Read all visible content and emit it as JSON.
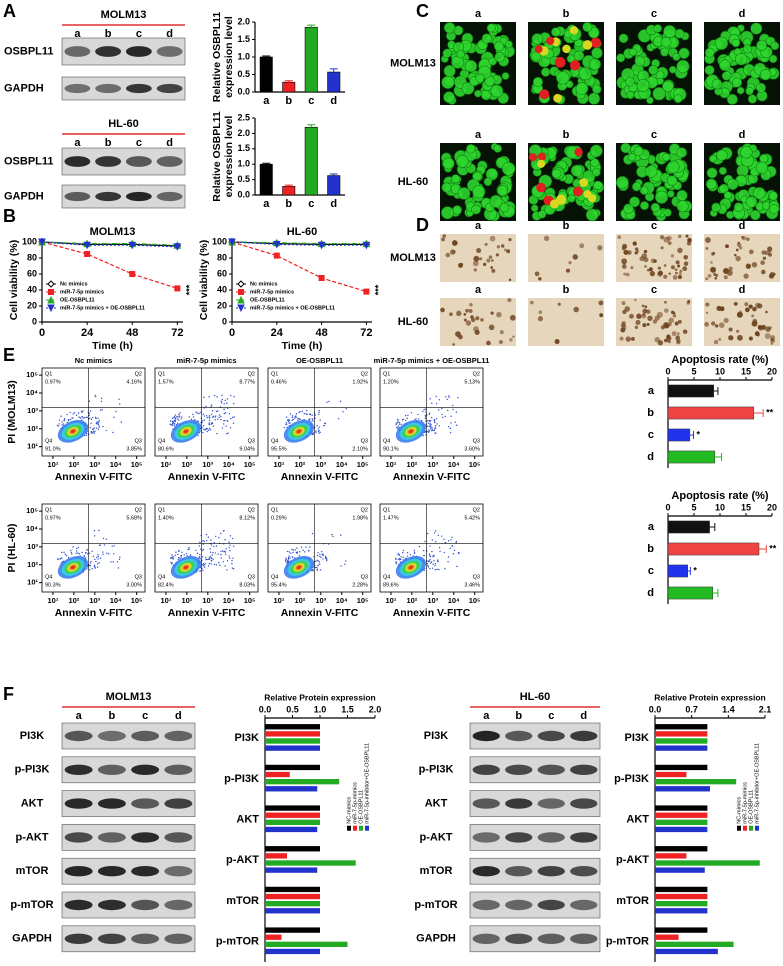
{
  "panels": {
    "labels": [
      "A",
      "B",
      "C",
      "D",
      "E",
      "F"
    ]
  },
  "blots": {
    "A": [
      {
        "cell": "MOLM13",
        "lanes": [
          "a",
          "b",
          "c",
          "d"
        ],
        "rows": [
          "OSBPL11",
          "GAPDH"
        ]
      },
      {
        "cell": "HL-60",
        "lanes": [
          "a",
          "b",
          "c",
          "d"
        ],
        "rows": [
          "OSBPL11",
          "GAPDH"
        ]
      }
    ],
    "F": [
      {
        "cell": "MOLM13",
        "lanes": [
          "a",
          "b",
          "c",
          "d"
        ],
        "rows": [
          "PI3K",
          "p-PI3K",
          "AKT",
          "p-AKT",
          "mTOR",
          "p-mTOR",
          "GAPDH"
        ]
      },
      {
        "cell": "HL-60",
        "lanes": [
          "a",
          "b",
          "c",
          "d"
        ],
        "rows": [
          "PI3K",
          "p-PI3K",
          "AKT",
          "p-AKT",
          "mTOR",
          "p-mTOR",
          "GAPDH"
        ]
      }
    ]
  },
  "images": {
    "C": {
      "columns": [
        "a",
        "b",
        "c",
        "d"
      ],
      "rows": [
        "MOLM13",
        "HL-60"
      ]
    },
    "D": {
      "columns": [
        "a",
        "b",
        "c",
        "d"
      ],
      "rows": [
        "MOLM13",
        "HL-60"
      ]
    }
  },
  "flow": {
    "columns": [
      "Nc mimics",
      "miR-7-5p mimics",
      "OE-OSBPL11",
      "miR-7-5p mimics + OE-OSBPL11"
    ],
    "x_label": "Annexin V-FITC",
    "quadrant_names": [
      "Q1",
      "Q2",
      "Q3",
      "Q4"
    ],
    "log_scale": true,
    "lim": [
      3,
      250000
    ],
    "ticks": [
      {
        "value": 10,
        "label": "10¹"
      },
      {
        "value": 100,
        "label": "10²"
      },
      {
        "value": 1000,
        "label": "10³"
      },
      {
        "value": 10000,
        "label": "10⁴"
      },
      {
        "value": 100000,
        "label": "10⁵"
      }
    ],
    "rows": [
      {
        "y_label": "PI (MOLM13)",
        "plots": [
          {
            "quadrants": [
              "0.97%",
              "4.16%",
              "3.85%",
              "91.0%"
            ]
          },
          {
            "quadrants": [
              "1.57%",
              "8.77%",
              "9.04%",
              "80.6%"
            ]
          },
          {
            "quadrants": [
              "0.46%",
              "1.92%",
              "2.10%",
              "95.5%"
            ]
          },
          {
            "quadrants": [
              "1.20%",
              "5.13%",
              "3.60%",
              "90.1%"
            ]
          }
        ]
      },
      {
        "y_label": "PI (HL-60)",
        "plots": [
          {
            "quadrants": [
              "0.97%",
              "5.68%",
              "3.00%",
              "90.3%"
            ]
          },
          {
            "quadrants": [
              "1.40%",
              "8.12%",
              "8.03%",
              "82.4%"
            ]
          },
          {
            "quadrants": [
              "0.29%",
              "1.98%",
              "2.28%",
              "95.4%"
            ]
          },
          {
            "quadrants": [
              "1.47%",
              "5.42%",
              "3.46%",
              "89.6%"
            ]
          }
        ]
      }
    ]
  },
  "chart_data": [
    {
      "type": "bar",
      "y_label": [
        "Relative OSBPL11",
        "expression level"
      ],
      "categories": [
        "a",
        "b",
        "c",
        "d"
      ],
      "values": [
        1.0,
        0.28,
        1.85,
        0.57
      ],
      "errors": [
        0.03,
        0.04,
        0.06,
        0.09
      ],
      "colors": [
        "#000000",
        "#ee2222",
        "#22aa22",
        "#2233cc"
      ],
      "ylim": [
        0,
        2.0
      ],
      "yticks": [
        {
          "value": 0,
          "label": "0.0"
        },
        {
          "value": 0.5,
          "label": "0.5"
        },
        {
          "value": 1,
          "label": "1.0"
        },
        {
          "value": 1.5,
          "label": "1.5"
        },
        {
          "value": 2,
          "label": "2.0"
        }
      ]
    },
    {
      "type": "bar",
      "y_label": [
        "Relative OSBPL11",
        "expression level"
      ],
      "categories": [
        "a",
        "b",
        "c",
        "d"
      ],
      "values": [
        1.0,
        0.28,
        2.2,
        0.63
      ],
      "errors": [
        0.03,
        0.04,
        0.08,
        0.05
      ],
      "colors": [
        "#000000",
        "#ee2222",
        "#22aa22",
        "#2233cc"
      ],
      "ylim": [
        0,
        2.5
      ],
      "yticks": [
        {
          "value": 0,
          "label": "0.0"
        },
        {
          "value": 0.5,
          "label": "0.5"
        },
        {
          "value": 1,
          "label": "1.0"
        },
        {
          "value": 1.5,
          "label": "1.5"
        },
        {
          "value": 2,
          "label": "2.0"
        },
        {
          "value": 2.5,
          "label": "2.5"
        }
      ]
    },
    {
      "type": "line",
      "title": "MOLM13",
      "title_color": "#f0b800",
      "x_label": "Time (h)",
      "y_label": "Cell viability (%)",
      "x": [
        0,
        24,
        48,
        72
      ],
      "xlim": [
        0,
        75
      ],
      "xticks": [
        0,
        24,
        48,
        72
      ],
      "ylim": [
        0,
        105
      ],
      "yticks": [
        0,
        20,
        40,
        60,
        80,
        100
      ],
      "legend": "lower left",
      "series": [
        {
          "name": "Nc mimics",
          "color": "#000000",
          "marker": "diamond",
          "dash": "none",
          "values": [
            100,
            97,
            97,
            95
          ]
        },
        {
          "name": "miR-7-5p mimics",
          "color": "#ee2222",
          "marker": "square",
          "dash": "4,2",
          "values": [
            100,
            85,
            60,
            42
          ]
        },
        {
          "name": "OE-OSBPL11",
          "color": "#22aa22",
          "marker": "triangle",
          "dash": "5,2,1,2",
          "values": [
            100,
            98,
            98,
            96
          ]
        },
        {
          "name": "miR-7-5p mimics + OE-OSBPL11",
          "color": "#2233cc",
          "marker": "triangle-down",
          "dash": "2,2",
          "values": [
            100,
            96,
            96,
            94
          ]
        }
      ],
      "annotations": [
        {
          "text": "***"
        }
      ]
    },
    {
      "type": "line",
      "title": "HL-60",
      "title_color": "#f0b800",
      "x_label": "Time (h)",
      "y_label": "Cell viability (%)",
      "x": [
        0,
        24,
        48,
        72
      ],
      "xlim": [
        0,
        75
      ],
      "xticks": [
        0,
        24,
        48,
        72
      ],
      "ylim": [
        0,
        105
      ],
      "yticks": [
        0,
        20,
        40,
        60,
        80,
        100
      ],
      "legend": "lower left",
      "series": [
        {
          "name": "Nc mimics",
          "color": "#000000",
          "marker": "diamond",
          "dash": "none",
          "values": [
            100,
            98,
            97,
            97
          ]
        },
        {
          "name": "miR-7-5p mimics",
          "color": "#ee2222",
          "marker": "square",
          "dash": "4,2",
          "values": [
            100,
            83,
            55,
            38
          ]
        },
        {
          "name": "OE-OSBPL11",
          "color": "#22aa22",
          "marker": "triangle",
          "dash": "5,2,1,2",
          "values": [
            100,
            99,
            98,
            98
          ]
        },
        {
          "name": "miR-7-5p mimics + OE-OSBPL11",
          "color": "#2233cc",
          "marker": "triangle-down",
          "dash": "2,2",
          "values": [
            100,
            97,
            96,
            96
          ]
        }
      ],
      "annotations": [
        {
          "text": "***"
        }
      ]
    },
    {
      "type": "bar",
      "horizontal": true,
      "title": "Apoptosis rate (%)",
      "categories": [
        "a",
        "b",
        "c",
        "d"
      ],
      "values": [
        8.8,
        16.5,
        4.2,
        9.0
      ],
      "errors": [
        0.8,
        1.8,
        0.7,
        1.3
      ],
      "colors": [
        "#111111",
        "#ee4444",
        "#2233ee",
        "#22bb22"
      ],
      "xlim": [
        0,
        20
      ],
      "xticks": [
        0,
        5,
        10,
        15,
        20
      ],
      "annotations": [
        {
          "text": "**",
          "category": "b"
        },
        {
          "text": "*",
          "category": "c"
        }
      ]
    },
    {
      "type": "bar",
      "horizontal": true,
      "title": "Apoptosis rate (%)",
      "categories": [
        "a",
        "b",
        "c",
        "d"
      ],
      "values": [
        8.0,
        17.5,
        3.8,
        8.6
      ],
      "errors": [
        1.0,
        1.4,
        0.5,
        1.0
      ],
      "colors": [
        "#111111",
        "#ee4444",
        "#2233ee",
        "#22bb22"
      ],
      "xlim": [
        0,
        20
      ],
      "xticks": [
        0,
        5,
        10,
        15,
        20
      ],
      "annotations": [
        {
          "text": "**",
          "category": "b"
        },
        {
          "text": "*",
          "category": "c"
        }
      ]
    },
    {
      "type": "bar",
      "horizontal": true,
      "title": "Relative  Protein expression",
      "categories": [
        "PI3K",
        "p-PI3K",
        "AKT",
        "p-AKT",
        "mTOR",
        "p-mTOR"
      ],
      "xlim": [
        0,
        2.0
      ],
      "xticks": [
        {
          "value": 0,
          "label": "0.0"
        },
        {
          "value": 0.5,
          "label": "0.5"
        },
        {
          "value": 1,
          "label": "1.0"
        },
        {
          "value": 1.5,
          "label": "1.5"
        },
        {
          "value": 2,
          "label": "2.0"
        }
      ],
      "legend": "right",
      "series": [
        {
          "name": "NC-mimics",
          "color": "#000000",
          "values": [
            1.0,
            1.0,
            1.0,
            1.0,
            1.0,
            1.0
          ]
        },
        {
          "name": "miR-7-5p-mimics",
          "color": "#ee2222",
          "values": [
            1.0,
            0.45,
            1.0,
            0.4,
            1.0,
            0.3
          ]
        },
        {
          "name": "OE-OSBPL11",
          "color": "#22aa22",
          "values": [
            1.0,
            1.35,
            1.0,
            1.65,
            1.0,
            1.5
          ]
        },
        {
          "name": "miR-7-5p-inhibitor+OE-OSBPL11",
          "color": "#2233cc",
          "values": [
            1.0,
            0.95,
            0.95,
            0.95,
            1.0,
            1.0
          ]
        }
      ]
    },
    {
      "type": "bar",
      "horizontal": true,
      "title": "Relative  Protein expression",
      "categories": [
        "PI3K",
        "p-PI3K",
        "AKT",
        "p-AKT",
        "mTOR",
        "p-mTOR"
      ],
      "xlim": [
        0,
        2.1
      ],
      "xticks": [
        {
          "value": 0,
          "label": "0.0"
        },
        {
          "value": 0.7,
          "label": "0.7"
        },
        {
          "value": 1.4,
          "label": "1.4"
        },
        {
          "value": 2.1,
          "label": "2.1"
        }
      ],
      "legend": "right",
      "series": [
        {
          "name": "NC-mimics",
          "color": "#000000",
          "values": [
            1.0,
            1.0,
            1.0,
            1.0,
            1.0,
            1.0
          ]
        },
        {
          "name": "miR-7-5p-mimics",
          "color": "#ee2222",
          "values": [
            1.0,
            0.6,
            1.0,
            0.6,
            1.0,
            0.45
          ]
        },
        {
          "name": "OE-OSBPL11",
          "color": "#22aa22",
          "values": [
            1.0,
            1.55,
            1.0,
            2.0,
            1.0,
            1.5
          ]
        },
        {
          "name": "miR-7-5p-inhibitor+OE-OSBPL11",
          "color": "#2233cc",
          "values": [
            1.0,
            1.05,
            1.0,
            0.95,
            1.0,
            1.2
          ]
        }
      ]
    }
  ]
}
